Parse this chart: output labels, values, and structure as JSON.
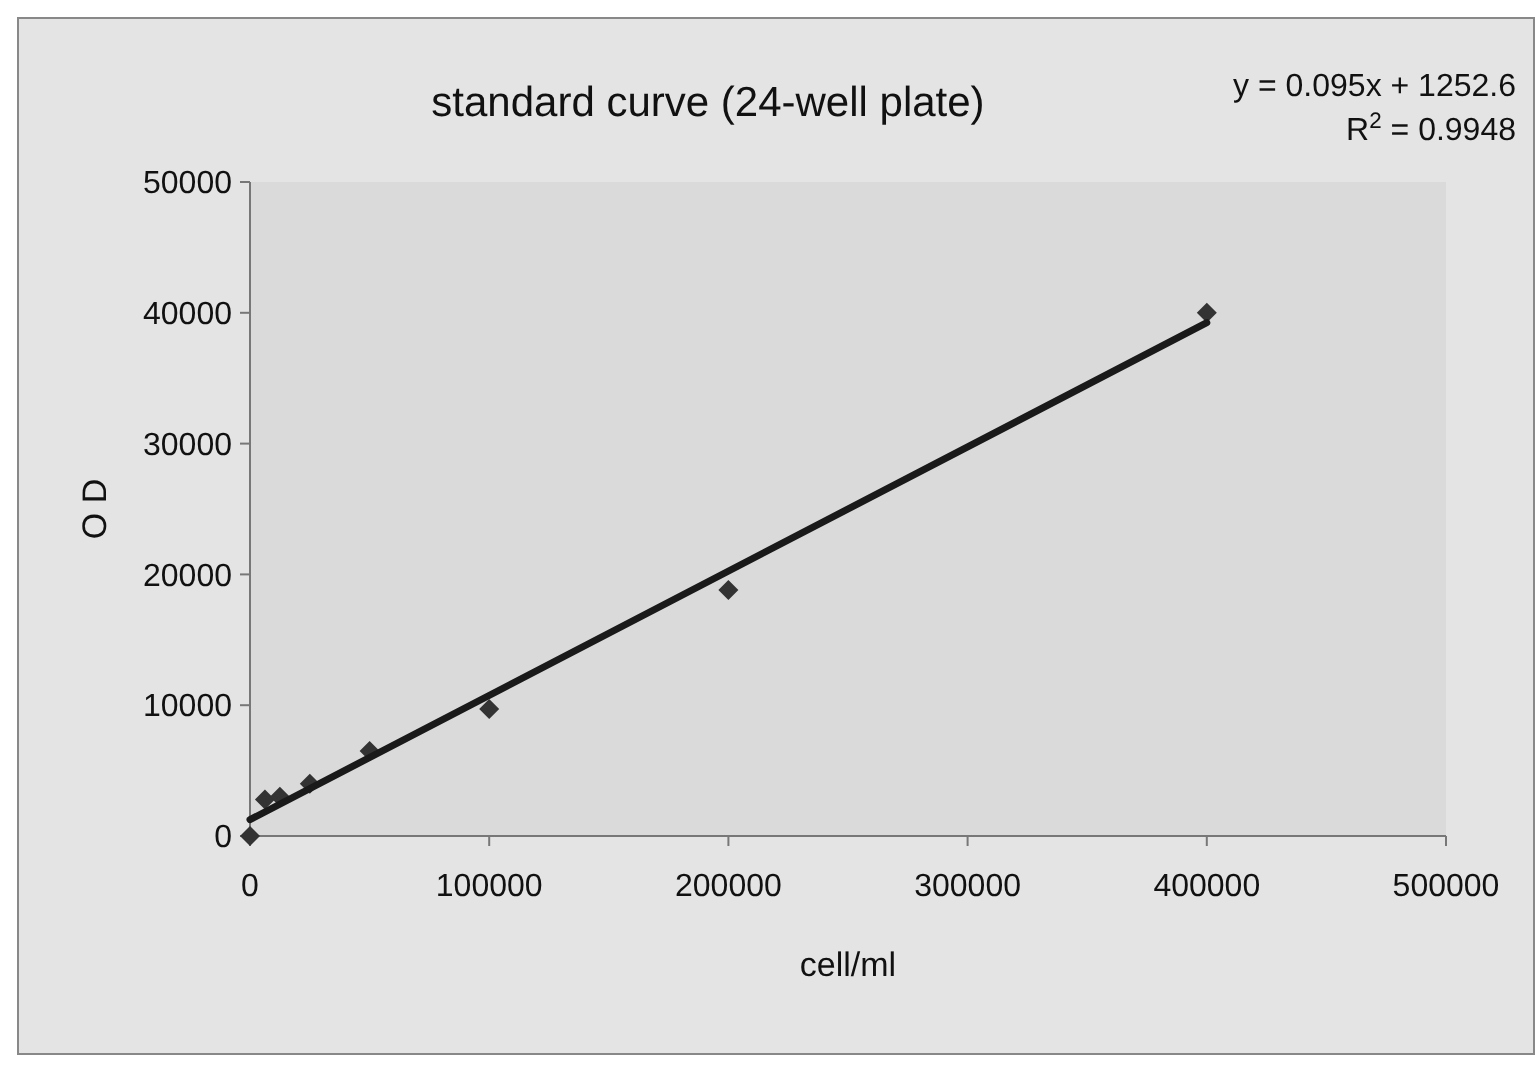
{
  "chart_data": {
    "type": "scatter",
    "title": "standard curve (24-well plate)",
    "xlabel": "cell/ml",
    "ylabel": "O D",
    "x": [
      0,
      6250,
      12500,
      25000,
      50000,
      100000,
      200000,
      400000
    ],
    "series": [
      {
        "type": "scatter",
        "color": "#333333",
        "marker": "diamond",
        "values": [
          0,
          2800,
          3000,
          4000,
          6500,
          9700,
          18800,
          40000
        ]
      },
      {
        "type": "line",
        "color": "#1a1a1a",
        "marker": "none",
        "x": [
          0,
          400000
        ],
        "values": [
          1250,
          39250
        ]
      }
    ],
    "xlim": [
      0,
      500000
    ],
    "xticks": [
      0,
      100000,
      200000,
      300000,
      400000,
      500000
    ],
    "ylim": [
      0,
      50000
    ],
    "yticks": [
      0,
      10000,
      20000,
      30000,
      40000,
      50000
    ],
    "grid": false,
    "annotations": [
      "y = 0.095x + 1252.6",
      "R$^{2}$ = 0.9948"
    ]
  }
}
